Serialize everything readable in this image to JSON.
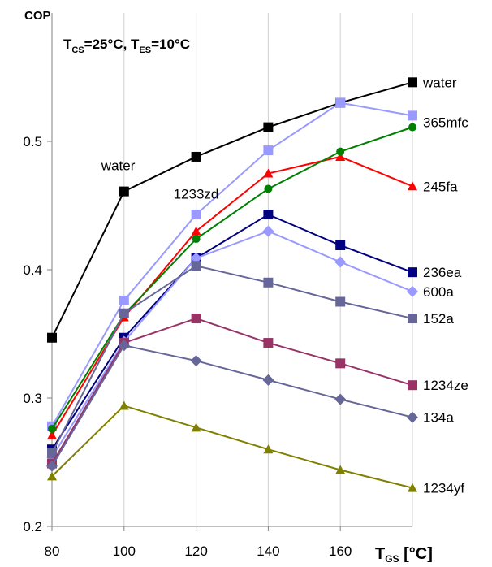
{
  "chart_data": {
    "type": "line",
    "ylabel": "COP",
    "xlabel_main": "T",
    "xlabel_sub": "GS",
    "xlabel_unit": " [°C]",
    "condition": {
      "t1": "T",
      "t1_sub": "CS",
      "t1_val": "=25°C, ",
      "t2": "T",
      "t2_sub": "ES",
      "t2_val": "=10°C"
    },
    "x": [
      80,
      100,
      120,
      140,
      160,
      180
    ],
    "x_ticks": [
      "80",
      "100",
      "120",
      "140",
      "160"
    ],
    "y_ticks": [
      "0.2",
      "0.3",
      "0.4",
      "0.5"
    ],
    "ylim": [
      0.2,
      0.56
    ],
    "xlim": [
      80,
      180
    ],
    "grid": "vertical",
    "series": [
      {
        "name": "water",
        "color": "#000000",
        "marker": "square",
        "values": [
          0.347,
          0.461,
          0.488,
          0.511,
          0.53,
          0.546
        ]
      },
      {
        "name": "1233zd",
        "color": "#9999ff",
        "marker": "square",
        "values": [
          0.278,
          0.376,
          0.443,
          0.493,
          0.53,
          0.52
        ]
      },
      {
        "name": "245fa",
        "color": "#ff0000",
        "marker": "triangle",
        "values": [
          0.271,
          0.363,
          0.43,
          0.475,
          0.488,
          0.465
        ]
      },
      {
        "name": "365mfc",
        "color": "#008000",
        "marker": "circle",
        "values": [
          0.276,
          0.365,
          0.424,
          0.463,
          0.492,
          0.511
        ]
      },
      {
        "name": "236ea",
        "color": "#000080",
        "marker": "square",
        "values": [
          0.26,
          0.347,
          0.409,
          0.443,
          0.419,
          0.398
        ]
      },
      {
        "name": "600a",
        "color": "#9999ff",
        "marker": "diamond",
        "values": [
          0.254,
          0.344,
          0.409,
          0.43,
          0.406,
          0.383
        ]
      },
      {
        "name": "152a",
        "color": "#666699",
        "marker": "square",
        "values": [
          0.257,
          0.366,
          0.403,
          0.39,
          0.375,
          0.362
        ]
      },
      {
        "name": "1234ze",
        "color": "#993366",
        "marker": "square",
        "values": [
          0.249,
          0.343,
          0.362,
          0.343,
          0.327,
          0.31
        ]
      },
      {
        "name": "134a",
        "color": "#666699",
        "marker": "diamond",
        "values": [
          0.247,
          0.341,
          0.329,
          0.314,
          0.299,
          0.285
        ]
      },
      {
        "name": "1234yf",
        "color": "#808000",
        "marker": "triangle",
        "values": [
          0.239,
          0.294,
          0.277,
          0.26,
          0.244,
          0.23
        ]
      }
    ],
    "annotations": [
      {
        "text": "water",
        "x": 100,
        "y": 0.475
      },
      {
        "text": "1233zd",
        "x": 120,
        "y": 0.453
      }
    ]
  }
}
